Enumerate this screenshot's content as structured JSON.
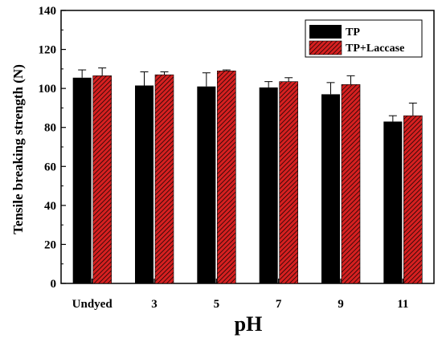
{
  "chart_data": {
    "type": "bar",
    "title": "",
    "xlabel": "pH",
    "ylabel": "Tensile breaking strength (N)",
    "categories": [
      "Undyed",
      "3",
      "5",
      "7",
      "9",
      "11"
    ],
    "ylim": [
      0,
      140
    ],
    "yticks": [
      0,
      20,
      40,
      60,
      80,
      100,
      120,
      140
    ],
    "yticks_labels": [
      "0",
      "20",
      "40",
      "60",
      "80",
      "100",
      "120",
      "140"
    ],
    "grid": false,
    "legend_position": "top-right",
    "series": [
      {
        "name": "TP",
        "values": [
          105.5,
          101.5,
          101.0,
          100.5,
          97.0,
          83.0
        ],
        "errors": [
          4.0,
          7.0,
          7.0,
          3.0,
          6.0,
          3.0
        ],
        "color": "#000000",
        "pattern": "solid"
      },
      {
        "name": "TP+Laccase",
        "values": [
          106.5,
          107.0,
          109.0,
          103.5,
          102.0,
          86.0
        ],
        "errors": [
          4.0,
          1.5,
          0.5,
          2.0,
          4.5,
          6.5
        ],
        "color": "#d62020",
        "pattern": "hatch"
      }
    ]
  }
}
